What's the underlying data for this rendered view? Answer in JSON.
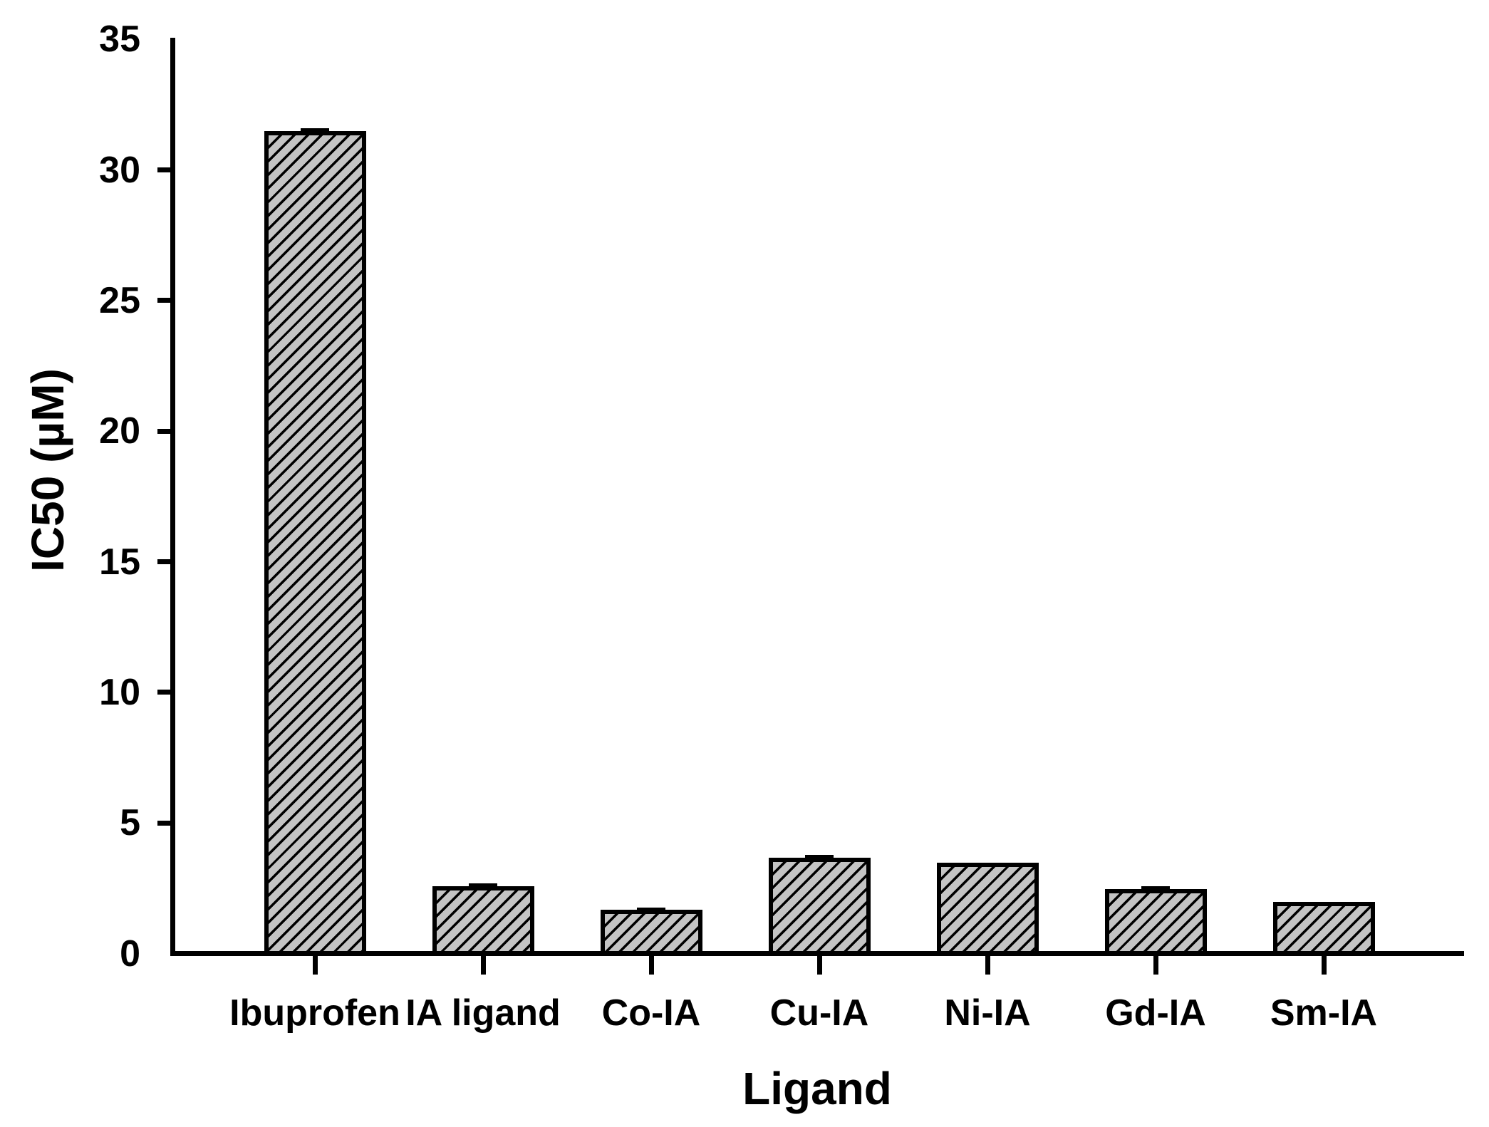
{
  "chart_data": {
    "type": "bar",
    "title": "",
    "xlabel": "Ligand",
    "ylabel": "IC50 (µM)",
    "categories": [
      "Ibuprofen",
      "IA ligand",
      "Co-IA",
      "Cu-IA",
      "Ni-IA",
      "Gd-IA",
      "Sm-IA"
    ],
    "values": [
      31.4,
      2.5,
      1.6,
      3.6,
      3.4,
      2.4,
      1.9
    ],
    "errors": [
      0.1,
      0.08,
      0.06,
      0.08,
      0,
      0.08,
      0
    ],
    "ylim": [
      0,
      35
    ],
    "ytick_interval": 5,
    "ytick_labels": [
      "0",
      "5",
      "10",
      "15",
      "20",
      "25",
      "30",
      "35"
    ],
    "ytick_marks": [
      5,
      10,
      15,
      20,
      25,
      30
    ],
    "grid": false,
    "legend": null,
    "bar_fill_color": "#c4c4c4",
    "bar_hatch": "diagonal-forward",
    "bar_border_color": "#000000",
    "axis_color": "#000000",
    "background_color": "#ffffff"
  }
}
